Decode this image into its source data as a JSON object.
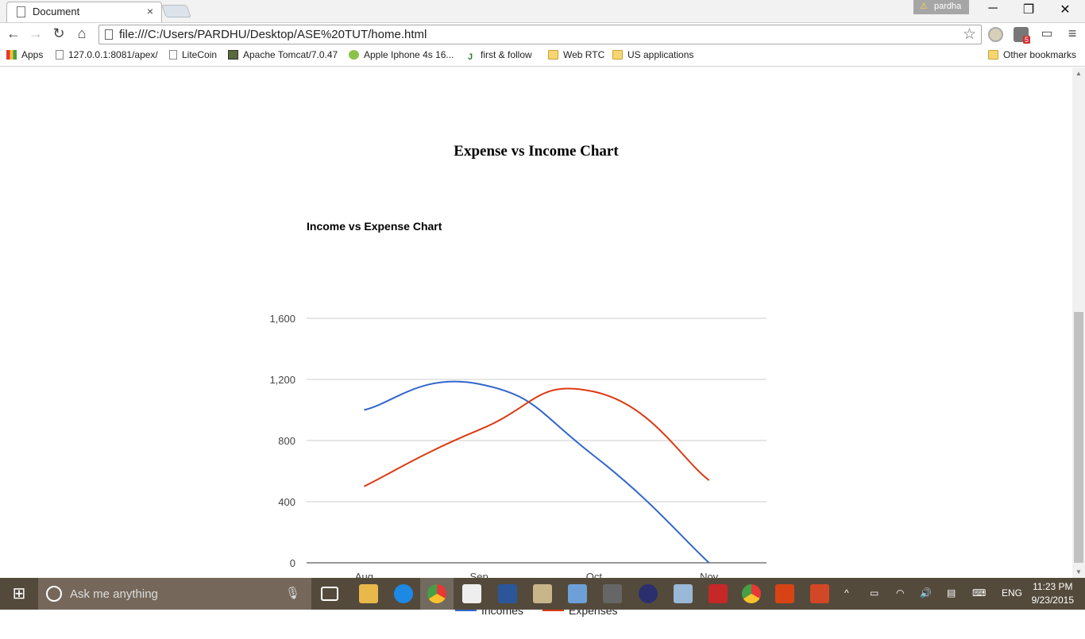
{
  "browser": {
    "tab_title": "Document",
    "tab_close": "×",
    "profile_name": "pardha",
    "window_controls": [
      "─",
      "❐",
      "✕"
    ],
    "url": "file:///C:/Users/PARDHU/Desktop/ASE%20TUT/home.html",
    "bookmarks": [
      {
        "label": "Apps",
        "icon": "apps-icon"
      },
      {
        "label": "127.0.0.1:8081/apex/",
        "icon": "page-icon"
      },
      {
        "label": "LiteCoin",
        "icon": "page-icon"
      },
      {
        "label": "Apache Tomcat/7.0.47",
        "icon": "tomcat-icon"
      },
      {
        "label": "Apple Iphone 4s 16...",
        "icon": "q-icon"
      },
      {
        "label": "first & follow",
        "icon": "j-icon"
      },
      {
        "label": "Web RTC",
        "icon": "folder-icon"
      },
      {
        "label": "US applications",
        "icon": "folder-icon"
      }
    ],
    "other_bookmarks": "Other bookmarks",
    "extension_badge": "5"
  },
  "page": {
    "heading": "Expense vs Income Chart"
  },
  "chart_data": {
    "type": "line",
    "title": "Income vs Expense Chart",
    "categories": [
      "Aug",
      "Sep",
      "Oct",
      "Nov"
    ],
    "series": [
      {
        "name": "Incomes",
        "values": [
          1000,
          1170,
          700,
          0
        ],
        "color": "#3366cc"
      },
      {
        "name": "Expenses",
        "values": [
          500,
          870,
          1120,
          540
        ],
        "color": "#dc3912"
      }
    ],
    "y_ticks": [
      "0",
      "400",
      "800",
      "1,200",
      "1,600"
    ],
    "ylim": [
      0,
      1600
    ],
    "curve": "smooth",
    "grid": true,
    "legend": "bottom"
  },
  "taskbar": {
    "search_placeholder": "Ask me anything",
    "language": "ENG",
    "time": "11:23 PM",
    "date": "9/23/2015",
    "accent": "#544a3b"
  }
}
